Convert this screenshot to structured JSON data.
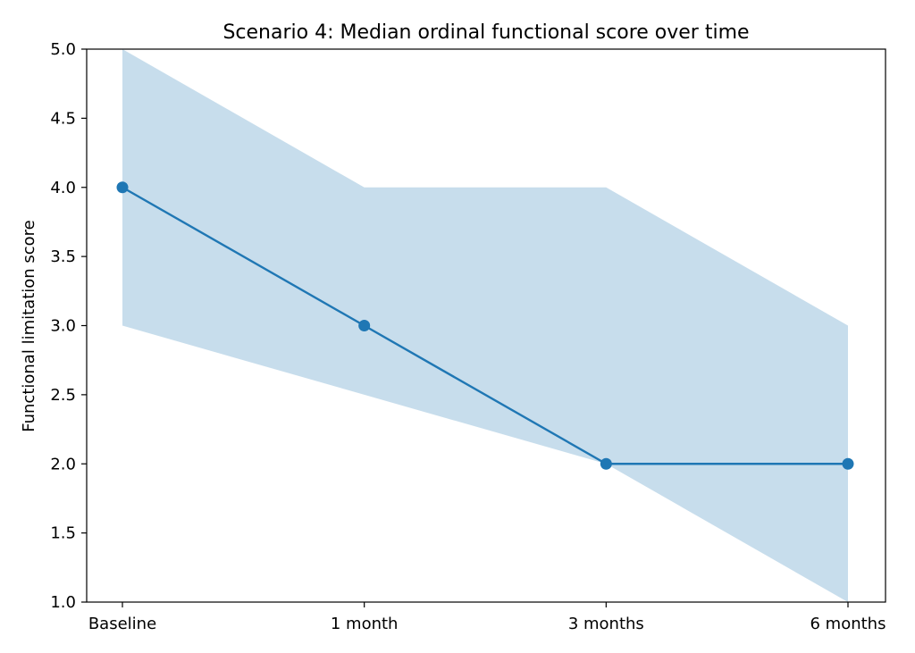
{
  "chart_data": {
    "type": "line",
    "title": "Scenario 4: Median ordinal functional score over time",
    "xlabel": "",
    "ylabel": "Functional limitation score",
    "categories": [
      "Baseline",
      "1 month",
      "3 months",
      "6 months"
    ],
    "series": [
      {
        "values": [
          4.0,
          3.0,
          2.0,
          2.0
        ],
        "color": "#1f77b4",
        "marker": "circle"
      }
    ],
    "band": {
      "lower": [
        3.0,
        2.5,
        2.0,
        1.0
      ],
      "upper": [
        5.0,
        4.0,
        4.0,
        3.0
      ],
      "color": "#1f77b4",
      "opacity": 0.25
    },
    "ylim": [
      1.0,
      5.0
    ],
    "yticks": [
      "1.0",
      "1.5",
      "2.0",
      "2.5",
      "3.0",
      "3.5",
      "4.0",
      "4.5",
      "5.0"
    ],
    "grid": false,
    "legend": "none"
  }
}
